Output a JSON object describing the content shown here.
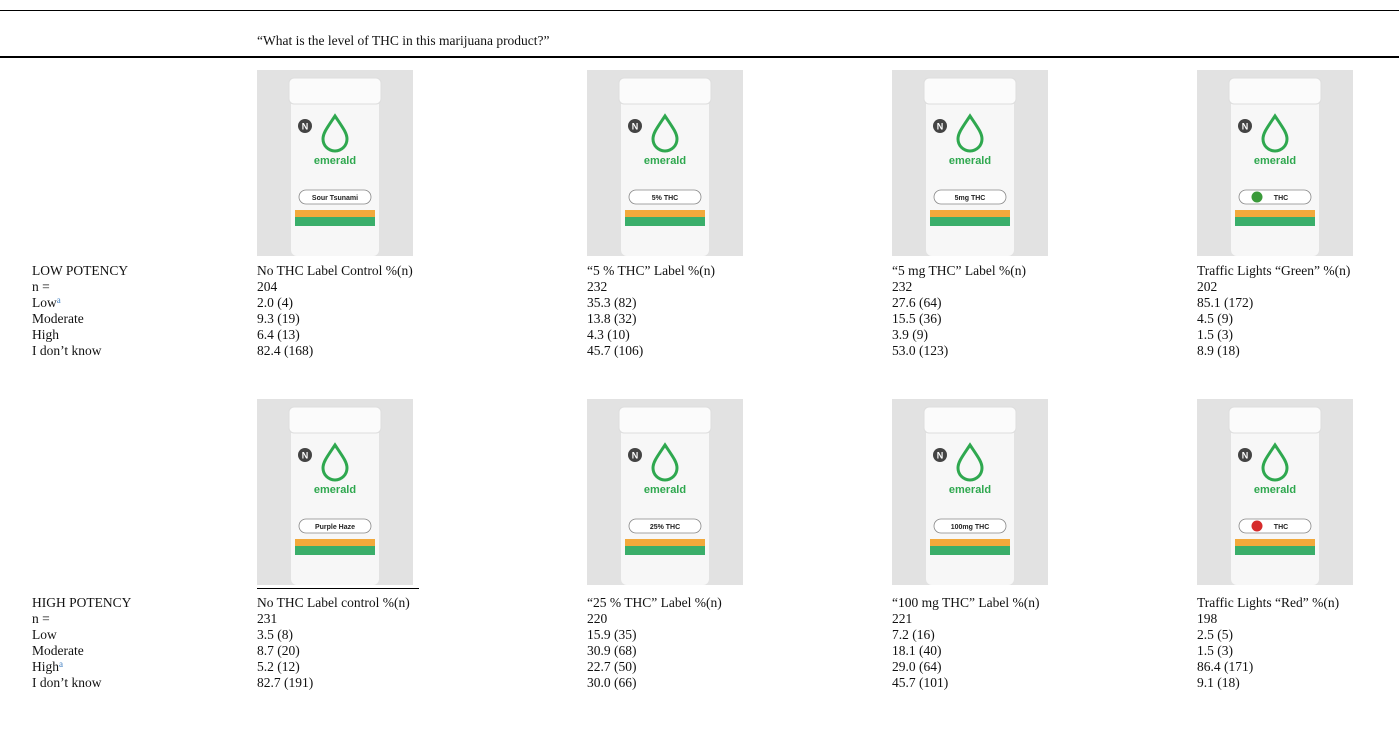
{
  "question": "“What is the level of THC in this marijuana product?”",
  "sections": [
    {
      "title": "LOW POTENCY",
      "row_labels": [
        {
          "text": "n ="
        },
        {
          "text": "Low",
          "sup": "a"
        },
        {
          "text": "Moderate"
        },
        {
          "text": "High"
        },
        {
          "text": "I don’t know"
        }
      ],
      "columns": [
        {
          "header": "No THC Label Control %(n)",
          "bottle": {
            "badge": "N",
            "brand": "emerald",
            "label": "Sour Tsunami"
          },
          "cells": [
            "204",
            "2.0 (4)",
            "9.3 (19)",
            "6.4 (13)",
            "82.4 (168)"
          ]
        },
        {
          "header": "“5 % THC” Label %(n)",
          "bottle": {
            "badge": "N",
            "brand": "emerald",
            "label": "5% THC"
          },
          "cells": [
            "232",
            "35.3 (82)",
            "13.8 (32)",
            "4.3 (10)",
            "45.7 (106)"
          ]
        },
        {
          "header": "“5 mg THC” Label %(n)",
          "bottle": {
            "badge": "N",
            "brand": "emerald",
            "label": "5mg THC"
          },
          "cells": [
            "232",
            "27.6 (64)",
            "15.5 (36)",
            "3.9 (9)",
            "53.0 (123)"
          ]
        },
        {
          "header": "Traffic Lights “Green” %(n)",
          "bottle": {
            "badge": "N",
            "brand": "emerald",
            "label": "THC",
            "dot_color": "#3a9a3a"
          },
          "cells": [
            "202",
            "85.1 (172)",
            "4.5 (9)",
            "1.5 (3)",
            "8.9 (18)"
          ]
        }
      ]
    },
    {
      "title": "HIGH POTENCY",
      "row_labels": [
        {
          "text": "n ="
        },
        {
          "text": "Low"
        },
        {
          "text": "Moderate"
        },
        {
          "text": "High",
          "sup": "a"
        },
        {
          "text": "I don’t know"
        }
      ],
      "columns": [
        {
          "header": "No THC Label control %(n)",
          "bottle": {
            "badge": "N",
            "brand": "emerald",
            "label": "Purple Haze"
          },
          "cells": [
            "231",
            "3.5 (8)",
            "8.7 (20)",
            "5.2 (12)",
            "82.7 (191)"
          ]
        },
        {
          "header": "“25 % THC” Label %(n)",
          "bottle": {
            "badge": "N",
            "brand": "emerald",
            "label": "25% THC"
          },
          "cells": [
            "220",
            "15.9 (35)",
            "30.9 (68)",
            "22.7 (50)",
            "30.0 (66)"
          ]
        },
        {
          "header": "“100 mg THC” Label %(n)",
          "bottle": {
            "badge": "N",
            "brand": "emerald",
            "label": "100mg THC"
          },
          "cells": [
            "221",
            "7.2 (16)",
            "18.1 (40)",
            "29.0 (64)",
            "45.7 (101)"
          ]
        },
        {
          "header": "Traffic Lights “Red” %(n)",
          "bottle": {
            "badge": "N",
            "brand": "emerald",
            "label": "THC",
            "dot_color": "#d62b2b"
          },
          "cells": [
            "198",
            "2.5 (5)",
            "1.5 (3)",
            "86.4 (171)",
            "9.1 (18)"
          ]
        }
      ]
    }
  ]
}
